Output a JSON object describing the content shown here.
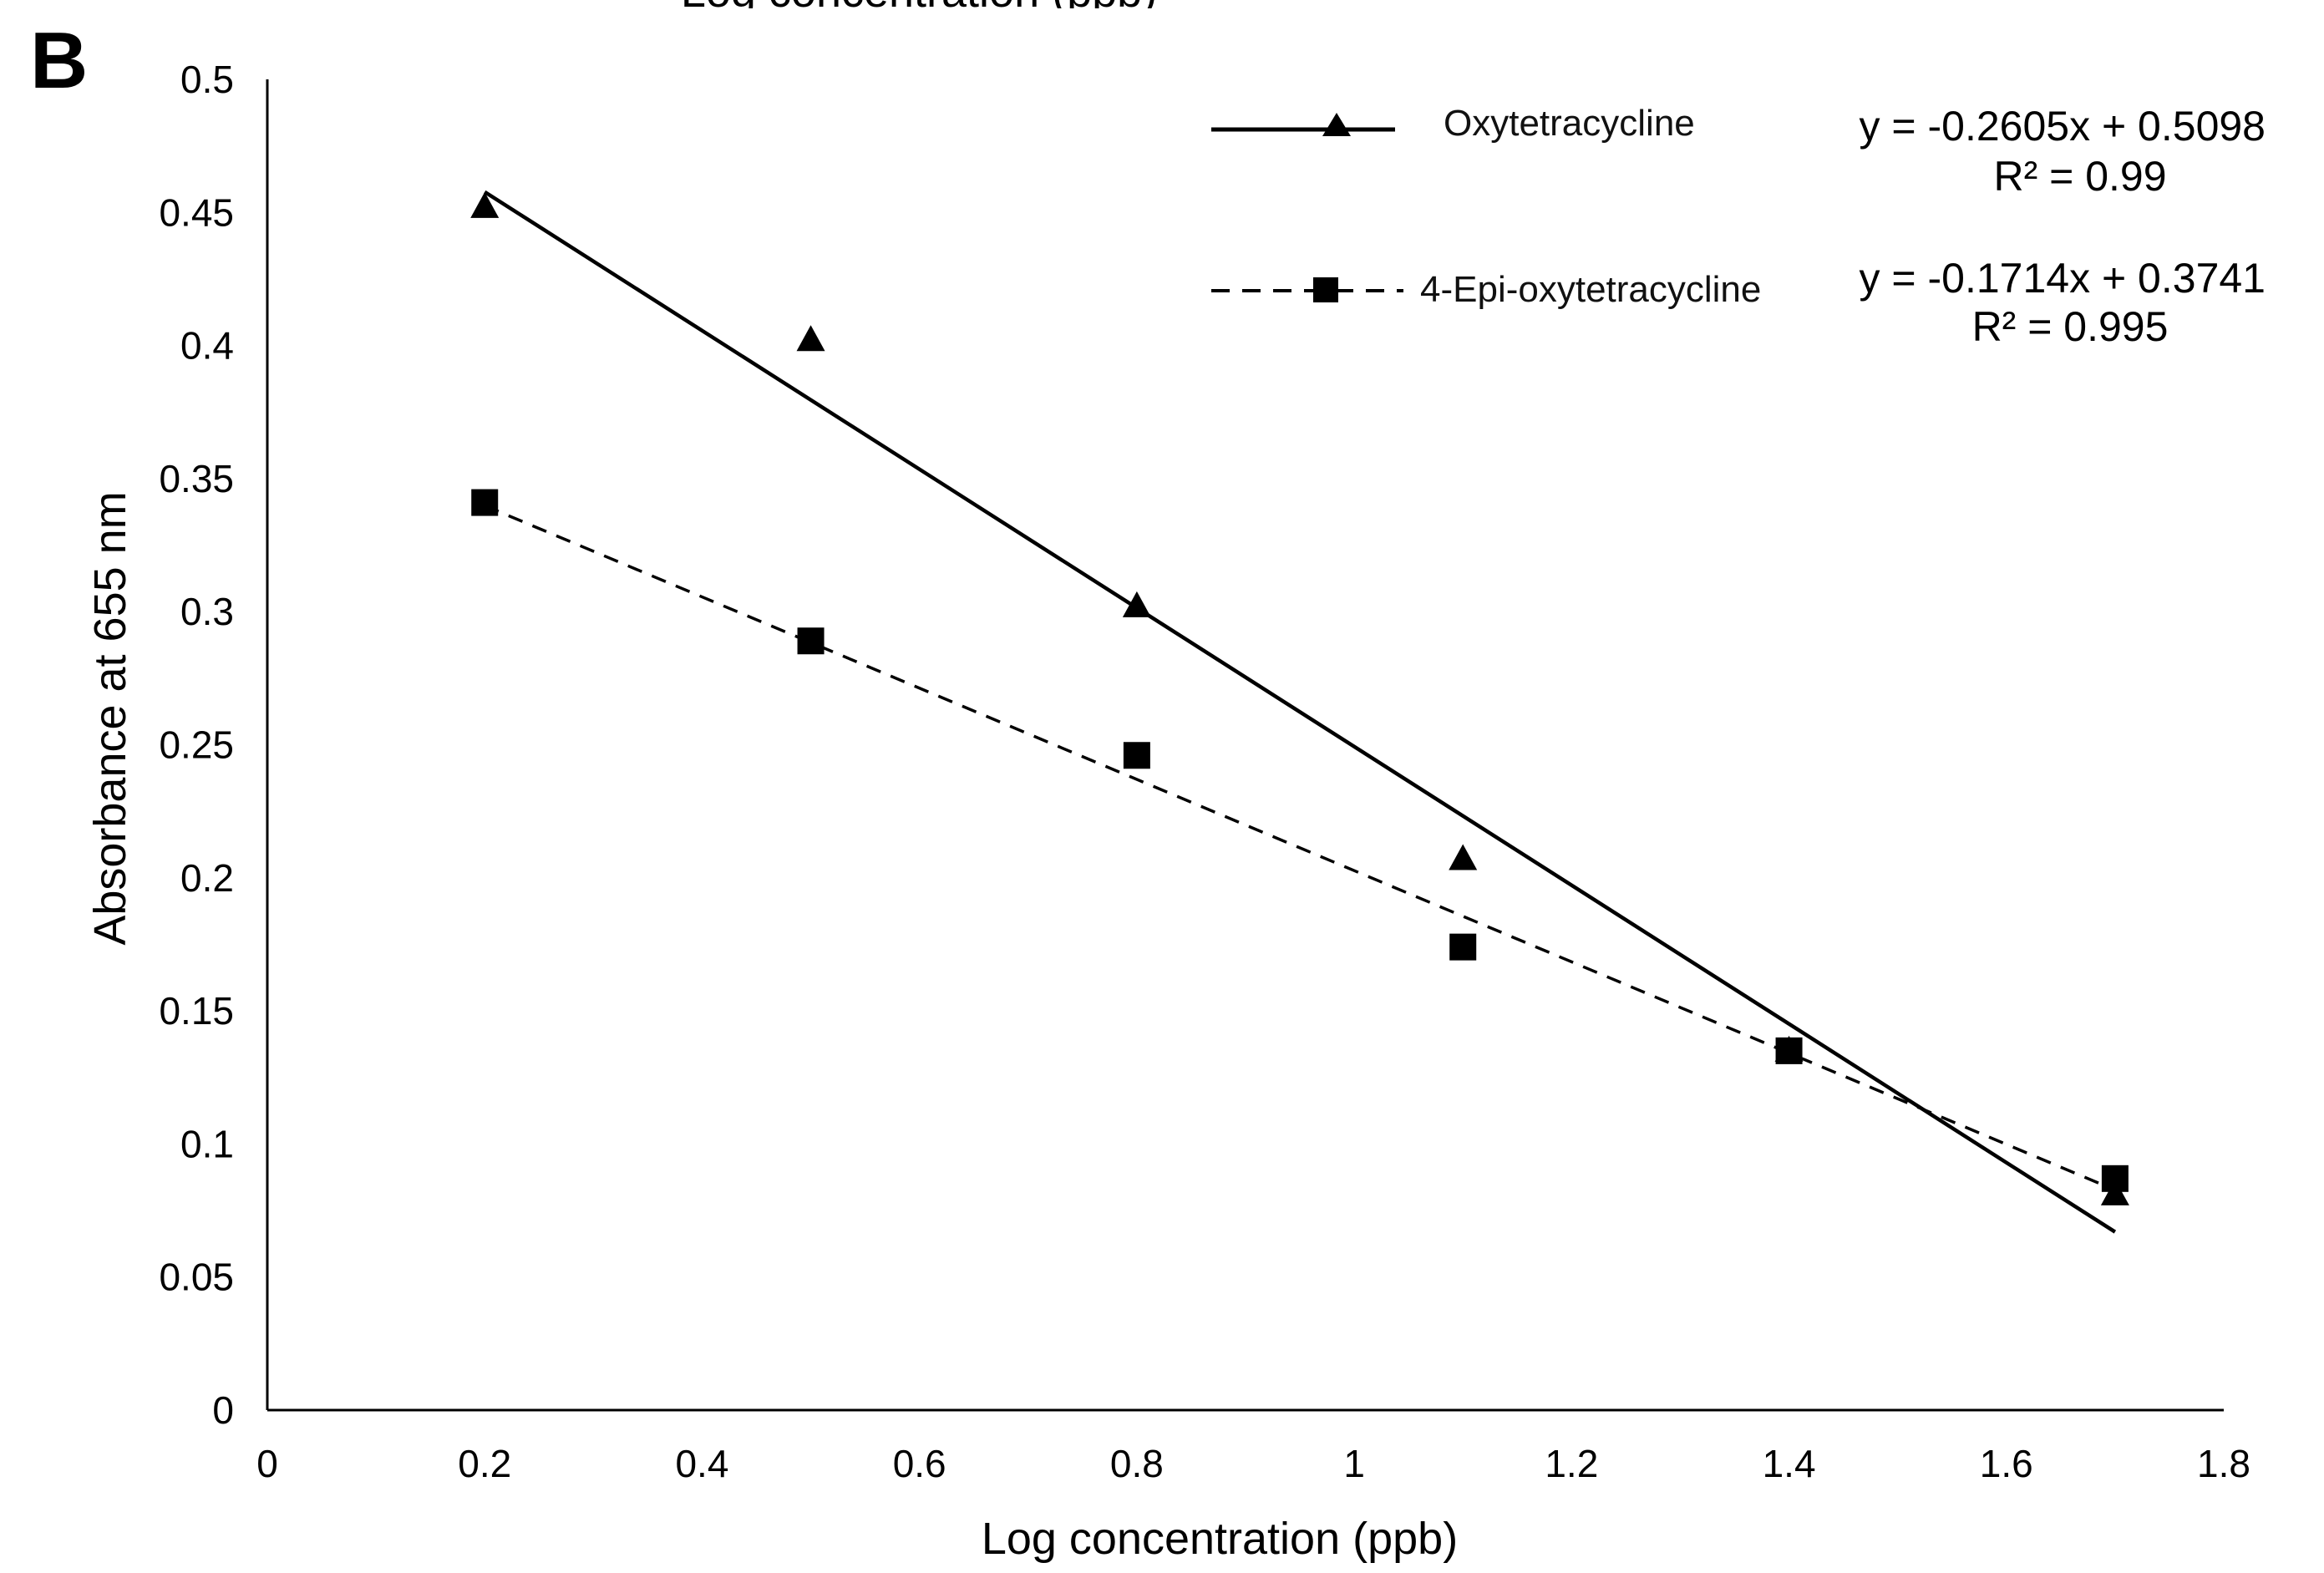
{
  "figure": {
    "panel_letter": "B",
    "top_clip_text": "Log concentration (ppb)"
  },
  "chart_data": {
    "type": "scatter",
    "title": "",
    "xlabel": "Log concentration (ppb)",
    "ylabel": "Absorbance at 655 nm",
    "xlim": [
      0,
      1.8
    ],
    "ylim": [
      0,
      0.5
    ],
    "x_ticks": [
      0,
      0.2,
      0.4,
      0.6,
      0.8,
      1.0,
      1.2,
      1.4,
      1.6,
      1.8
    ],
    "x_tick_labels": [
      "0",
      "0.2",
      "0.4",
      "0.6",
      "0.8",
      "1",
      "1.2",
      "1.4",
      "1.6",
      "1.8"
    ],
    "y_ticks": [
      0,
      0.05,
      0.1,
      0.15,
      0.2,
      0.25,
      0.3,
      0.35,
      0.4,
      0.45,
      0.5
    ],
    "y_tick_labels": [
      "0",
      "0.05",
      "0.1",
      "0.15",
      "0.2",
      "0.25",
      "0.3",
      "0.35",
      "0.4",
      "0.45",
      "0.5"
    ],
    "grid": false,
    "legend_position": "top-right",
    "series": [
      {
        "name": "Oxytetracycline",
        "marker": "triangle",
        "line_style": "solid",
        "x": [
          0.2,
          0.5,
          0.8,
          1.1,
          1.4,
          1.7
        ],
        "y": [
          0.452,
          0.402,
          0.302,
          0.207,
          0.135,
          0.081
        ],
        "trendline": {
          "slope": -0.2605,
          "intercept": 0.5098,
          "x_range": [
            0.2,
            1.7
          ]
        },
        "equation": "y = -0.2605x + 0.5098",
        "r_squared": "R² = 0.99"
      },
      {
        "name": "4-Epi-oxytetracycline",
        "marker": "square",
        "line_style": "dashed",
        "x": [
          0.2,
          0.5,
          0.8,
          1.1,
          1.4,
          1.7
        ],
        "y": [
          0.341,
          0.289,
          0.246,
          0.174,
          0.135,
          0.087
        ],
        "trendline": {
          "slope": -0.1714,
          "intercept": 0.3741,
          "x_range": [
            0.2,
            1.7
          ]
        },
        "equation": "y = -0.1714x + 0.3741",
        "r_squared": "R² = 0.995"
      }
    ]
  }
}
